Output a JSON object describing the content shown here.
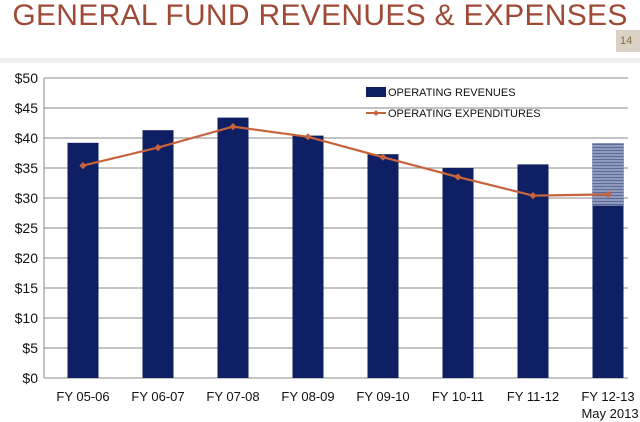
{
  "slide": {
    "title": "GENERAL FUND REVENUES & EXPENSES",
    "page_number": "14"
  },
  "chart_data": {
    "type": "bar",
    "categories": [
      "FY 05-06",
      "FY 06-07",
      "FY 07-08",
      "FY 08-09",
      "FY 09-10",
      "FY 10-11",
      "FY 11-12",
      "FY 12-13"
    ],
    "category_sublabels": [
      "",
      "",
      "",
      "",
      "",
      "",
      "",
      "May 2013"
    ],
    "series": [
      {
        "name": "OPERATING REVENUES",
        "type": "bar",
        "color": "#0f1f63",
        "values": [
          39.2,
          41.3,
          43.4,
          40.4,
          37.3,
          35.0,
          35.6,
          39.1
        ],
        "actual_portion_last": 28.7,
        "projected_color": "#8f9bbd"
      },
      {
        "name": "OPERATING EXPENDITURES",
        "type": "line",
        "color": "#c8643d",
        "values": [
          35.4,
          38.4,
          41.9,
          40.2,
          36.8,
          33.5,
          30.4,
          30.6
        ]
      }
    ],
    "ylim": [
      0,
      50
    ],
    "yticks": [
      0,
      5,
      10,
      15,
      20,
      25,
      30,
      35,
      40,
      45,
      50
    ],
    "ytick_labels": [
      "$0",
      "$5",
      "$10",
      "$15",
      "$20",
      "$25",
      "$30",
      "$35",
      "$40",
      "$45",
      "$50"
    ],
    "grid": true,
    "legend_position": "top-right"
  }
}
